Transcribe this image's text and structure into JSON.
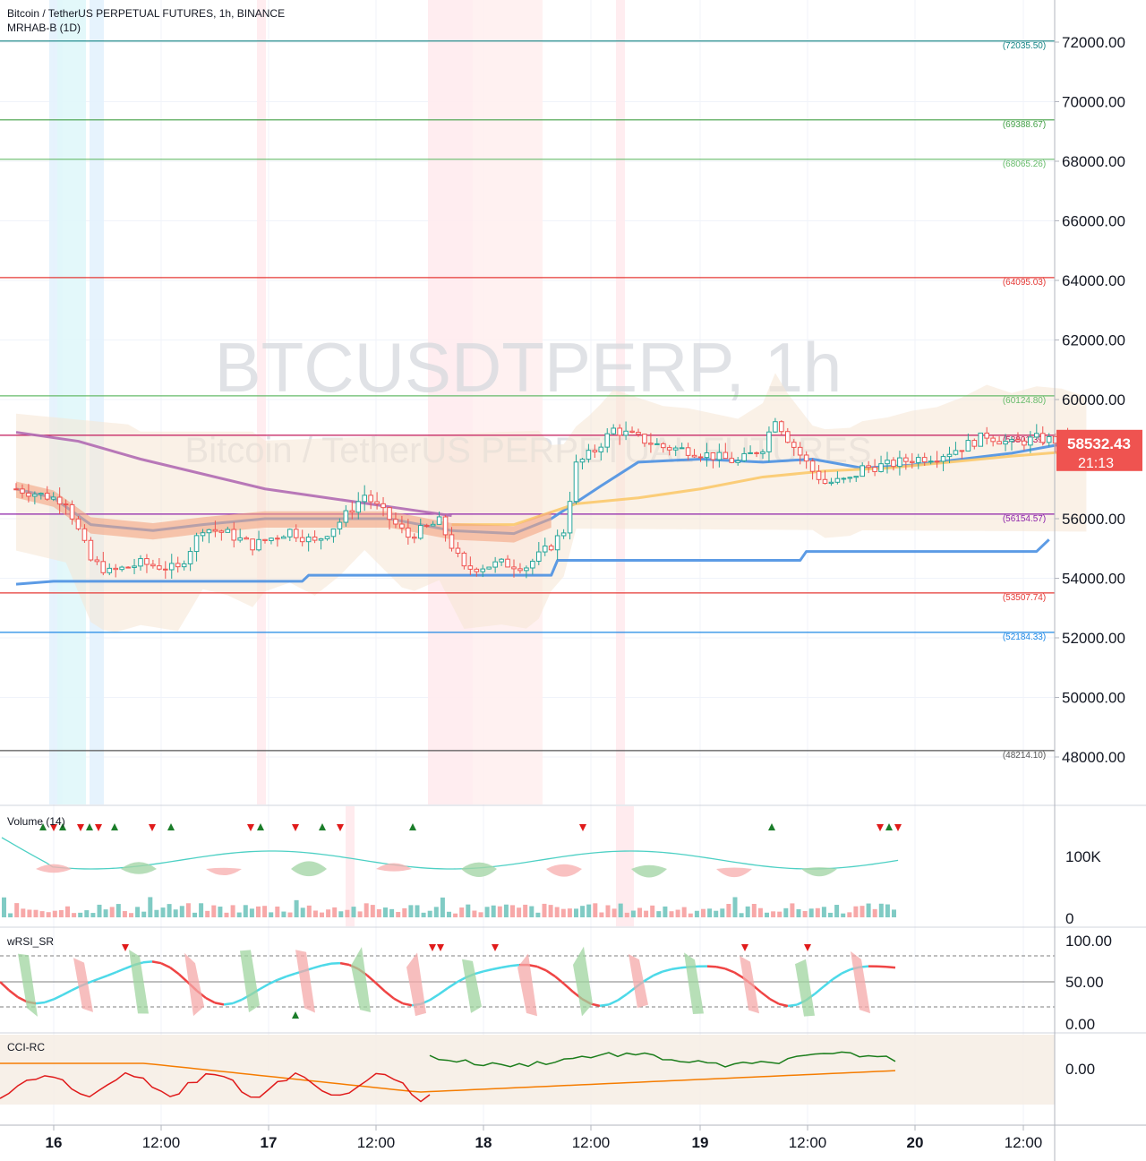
{
  "header": {
    "symbol_line": "Bitcoin / TetherUS PERPETUAL FUTURES, 1h, BINANCE",
    "indicator_line": "MRHAB-B (1D)"
  },
  "watermark": {
    "ticker": "BTCUSDTPERP, 1h",
    "name": "Bitcoin / TetherUS PERPETUAL FUTURES"
  },
  "price_axis": {
    "ticks": [
      "72000.00",
      "70000.00",
      "68000.00",
      "66000.00",
      "64000.00",
      "62000.00",
      "60000.00",
      "56000.00",
      "54000.00",
      "52000.00",
      "50000.00",
      "48000.00"
    ],
    "current_price": "58532.43",
    "countdown": "21:13",
    "current_color": "#ef5350"
  },
  "time_axis": {
    "ticks": [
      "16",
      "12:00",
      "17",
      "12:00",
      "18",
      "12:00",
      "19",
      "12:00",
      "20",
      "12:00"
    ]
  },
  "levels": [
    {
      "label": "(72035.50)",
      "value": 72035.5,
      "color": "#138484"
    },
    {
      "label": "(69388.67)",
      "value": 69388.67,
      "color": "#43a047"
    },
    {
      "label": "(68065.26)",
      "value": 68065.26,
      "color": "#66bb6a"
    },
    {
      "label": "(64095.03)",
      "value": 64095.03,
      "color": "#e53935"
    },
    {
      "label": "(60124.80)",
      "value": 60124.8,
      "color": "#66bb6a"
    },
    {
      "label": "(58801.39)",
      "value": 58801.39,
      "color": "#c2185b"
    },
    {
      "label": "(56154.57)",
      "value": 56154.57,
      "color": "#8e24aa"
    },
    {
      "label": "(53507.74)",
      "value": 53507.74,
      "color": "#e53935"
    },
    {
      "label": "(52184.33)",
      "value": 52184.33,
      "color": "#1e88e5"
    },
    {
      "label": "(48214.10)",
      "value": 48214.1,
      "color": "#555555"
    }
  ],
  "panes": {
    "volume": {
      "title": "Volume (14)",
      "ticks": [
        "100K",
        "0"
      ]
    },
    "rsi": {
      "title": "wRSI_SR",
      "ticks": [
        "100.00",
        "50.00",
        "0.00"
      ]
    },
    "cci": {
      "title": "CCI-RC",
      "ticks": [
        "0.00"
      ]
    }
  },
  "chart_data": {
    "type": "candlestick",
    "title": "Bitcoin / TetherUS PERPETUAL FUTURES, 1h, BINANCE",
    "y_range": [
      46500,
      73500
    ],
    "x_range": [
      "16 Mar 03:00",
      "20 Mar 13:00"
    ],
    "x_ticks": [
      "16",
      "12:00",
      "17",
      "12:00",
      "18",
      "12:00",
      "19",
      "12:00",
      "20",
      "12:00"
    ],
    "price_path": [
      [
        0,
        57000
      ],
      [
        4,
        56800
      ],
      [
        8,
        56600
      ],
      [
        12,
        54600
      ],
      [
        15,
        54200
      ],
      [
        20,
        54500
      ],
      [
        26,
        54300
      ],
      [
        30,
        55700
      ],
      [
        34,
        55500
      ],
      [
        38,
        55100
      ],
      [
        44,
        55600
      ],
      [
        48,
        55200
      ],
      [
        52,
        55900
      ],
      [
        56,
        56800
      ],
      [
        60,
        56000
      ],
      [
        63,
        55400
      ],
      [
        68,
        55900
      ],
      [
        72,
        54300
      ],
      [
        78,
        54500
      ],
      [
        82,
        54400
      ],
      [
        86,
        55100
      ],
      [
        88,
        55600
      ],
      [
        90,
        57800
      ],
      [
        93,
        58300
      ],
      [
        96,
        59000
      ],
      [
        100,
        58700
      ],
      [
        104,
        58400
      ],
      [
        108,
        58300
      ],
      [
        112,
        58100
      ],
      [
        116,
        57900
      ],
      [
        120,
        58400
      ],
      [
        122,
        59400
      ],
      [
        124,
        58700
      ],
      [
        128,
        57600
      ],
      [
        130,
        57200
      ],
      [
        134,
        57300
      ],
      [
        136,
        57700
      ],
      [
        140,
        57800
      ],
      [
        144,
        58000
      ],
      [
        148,
        58100
      ],
      [
        152,
        58400
      ],
      [
        156,
        58800
      ],
      [
        160,
        58500
      ],
      [
        164,
        58700
      ],
      [
        168,
        58600
      ],
      [
        172,
        58300
      ],
      [
        173,
        58532
      ]
    ],
    "series": [
      {
        "name": "EMA blue",
        "points": [
          [
            0,
            57000
          ],
          [
            6,
            56700
          ],
          [
            12,
            55800
          ],
          [
            22,
            55600
          ],
          [
            30,
            55800
          ],
          [
            40,
            56000
          ],
          [
            50,
            56000
          ],
          [
            60,
            56000
          ],
          [
            70,
            55600
          ],
          [
            80,
            55500
          ],
          [
            86,
            56000
          ],
          [
            94,
            57100
          ],
          [
            100,
            57900
          ],
          [
            110,
            58000
          ],
          [
            120,
            57900
          ],
          [
            128,
            58000
          ],
          [
            136,
            57700
          ],
          [
            144,
            57800
          ],
          [
            152,
            58000
          ],
          [
            160,
            58200
          ],
          [
            168,
            58500
          ],
          [
            172,
            58400
          ]
        ]
      },
      {
        "name": "EMA purple",
        "points": [
          [
            0,
            58900
          ],
          [
            10,
            58600
          ],
          [
            20,
            58000
          ],
          [
            30,
            57500
          ],
          [
            40,
            57000
          ],
          [
            50,
            56700
          ],
          [
            60,
            56400
          ],
          [
            70,
            56100
          ]
        ]
      },
      {
        "name": "EMA orange",
        "points": [
          [
            70,
            55800
          ],
          [
            80,
            55800
          ],
          [
            90,
            56500
          ],
          [
            100,
            56700
          ],
          [
            110,
            57000
          ],
          [
            120,
            57400
          ],
          [
            130,
            57600
          ],
          [
            140,
            57700
          ],
          [
            150,
            57900
          ],
          [
            160,
            58100
          ],
          [
            172,
            58300
          ]
        ]
      },
      {
        "name": "Support step",
        "points": [
          [
            0,
            53800
          ],
          [
            6,
            53900
          ],
          [
            46,
            53900
          ],
          [
            47,
            54100
          ],
          [
            86,
            54100
          ],
          [
            87,
            54600
          ],
          [
            126,
            54600
          ],
          [
            127,
            54900
          ],
          [
            164,
            54900
          ],
          [
            166,
            55300
          ]
        ]
      }
    ]
  }
}
